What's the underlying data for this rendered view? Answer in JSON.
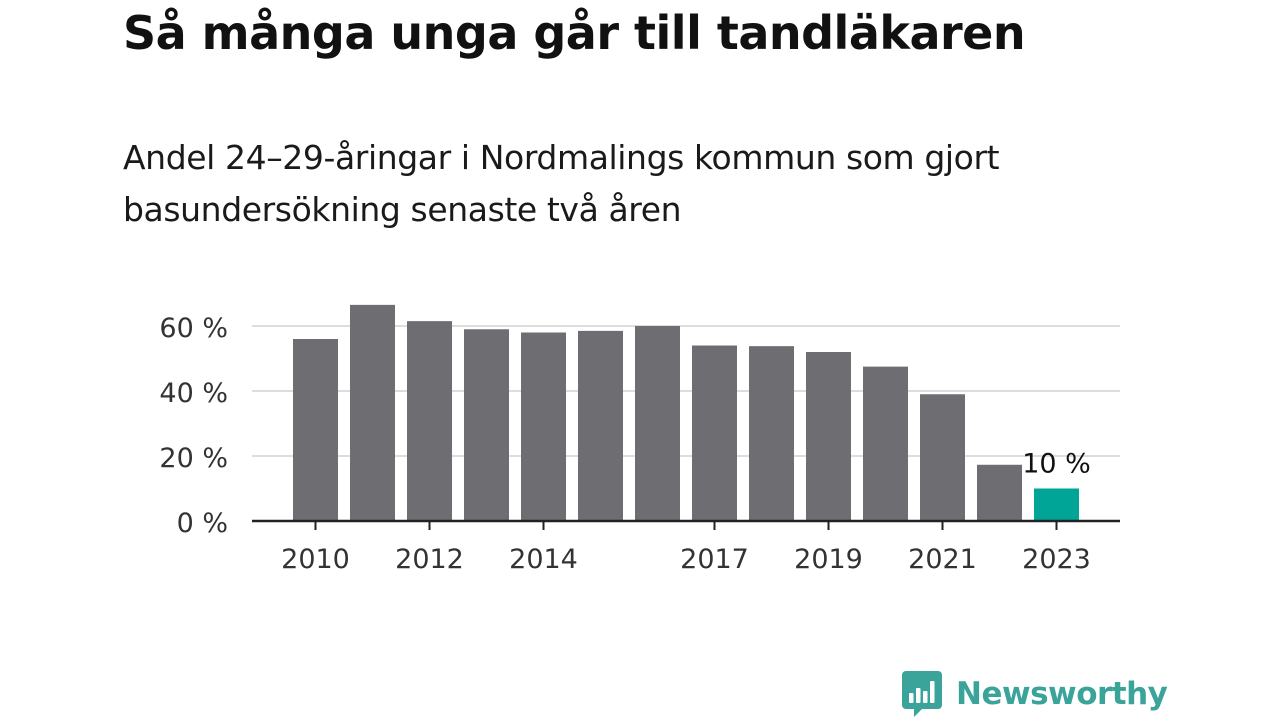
{
  "title": "Så många unga går till tandläkaren",
  "subtitle": "Andel 24–29-åringar i Nordmalings kommun som gjort basundersökning senaste två åren",
  "brand": {
    "name": "Newsworthy",
    "icon": "bar-chart-speech-bubble-icon",
    "color": "#3aa39a"
  },
  "colors": {
    "bar": "#6e6d72",
    "highlight": "#00a597",
    "grid": "#dddddd",
    "axis": "#222222"
  },
  "chart_data": {
    "type": "bar",
    "categories": [
      "2010",
      "2011",
      "2012",
      "2013",
      "2014",
      "2015",
      "2016",
      "2017",
      "2018",
      "2019",
      "2020",
      "2021",
      "2022",
      "2023"
    ],
    "values": [
      56,
      66.5,
      61.5,
      59,
      58,
      58.5,
      60,
      54,
      53.8,
      52,
      47.5,
      39,
      17.3,
      10
    ],
    "tick_labels_x": [
      "2010",
      "",
      "2012",
      "",
      "2014",
      "",
      "",
      "2017",
      "",
      "2019",
      "",
      "2021",
      "",
      "2023"
    ],
    "y_ticks": [
      0,
      20,
      40,
      60
    ],
    "y_tick_labels": [
      "0 %",
      "20 %",
      "40 %",
      "60 %"
    ],
    "ylim": [
      0,
      70
    ],
    "grid": true,
    "highlight_index": 13,
    "annotation": "10 %",
    "xlabel": "",
    "ylabel": ""
  }
}
